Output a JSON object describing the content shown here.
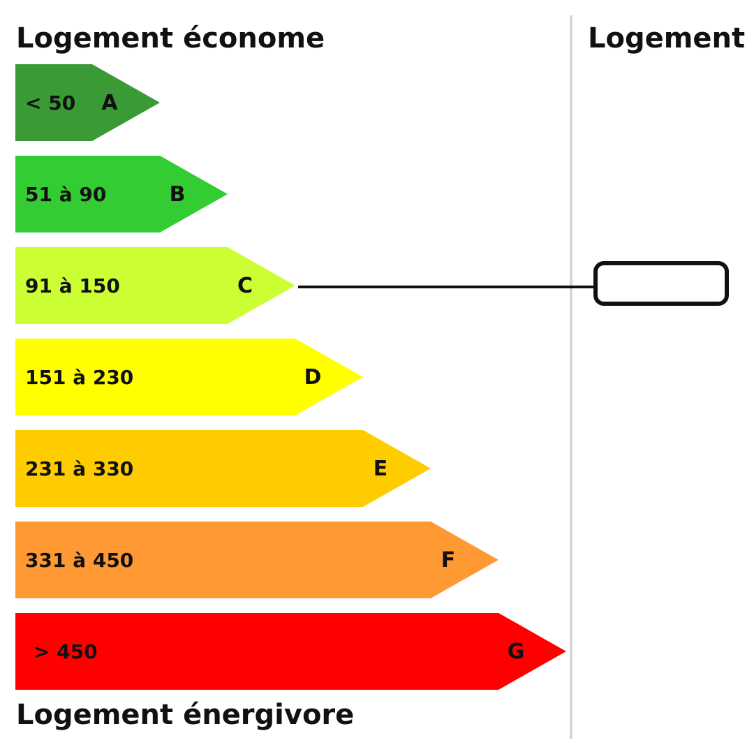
{
  "header": {
    "top_label": "Logement économe",
    "bottom_label": "Logement énergivore",
    "column_label": "Logement"
  },
  "bands": [
    {
      "letter": "A",
      "range": "< 50",
      "color": "#3a9a36"
    },
    {
      "letter": "B",
      "range": "51 à 90",
      "color": "#33cc33"
    },
    {
      "letter": "C",
      "range": "91 à 150",
      "color": "#ccff33"
    },
    {
      "letter": "D",
      "range": "151 à 230",
      "color": "#ffff00"
    },
    {
      "letter": "E",
      "range": "231 à 330",
      "color": "#ffcc00"
    },
    {
      "letter": "F",
      "range": "331 à 450",
      "color": "#ff9933"
    },
    {
      "letter": "G",
      "range": "> 450",
      "color": "#ff0000"
    }
  ],
  "indicator": {
    "band": "C",
    "value": ""
  },
  "colors": {
    "divider": "#d6d6d6",
    "indicator_stroke": "#111111"
  }
}
